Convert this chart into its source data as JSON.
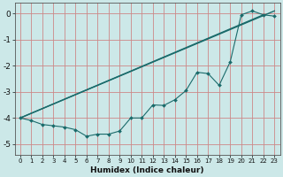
{
  "title": "",
  "xlabel": "Humidex (Indice chaleur)",
  "bg_color": "#cce8e8",
  "grid_color": "#cc8888",
  "line_color": "#1a6b6b",
  "xlim": [
    -0.5,
    23.5
  ],
  "ylim": [
    -5.4,
    0.4
  ],
  "yticks": [
    0,
    -1,
    -2,
    -3,
    -4,
    -5
  ],
  "xticks": [
    0,
    1,
    2,
    3,
    4,
    5,
    6,
    7,
    8,
    9,
    10,
    11,
    12,
    13,
    14,
    15,
    16,
    17,
    18,
    19,
    20,
    21,
    22,
    23
  ],
  "line1_x": [
    0,
    23
  ],
  "line1_y": [
    -4.0,
    0.1
  ],
  "line2_x": [
    0,
    22
  ],
  "line2_y": [
    -4.0,
    -0.05
  ],
  "jagged_x": [
    0,
    1,
    2,
    3,
    4,
    5,
    6,
    7,
    8,
    9,
    10,
    11,
    12,
    13,
    14,
    15,
    16,
    17,
    18,
    19,
    20,
    21,
    22,
    23
  ],
  "jagged_y": [
    -4.0,
    -4.1,
    -4.25,
    -4.3,
    -4.35,
    -4.45,
    -4.7,
    -4.62,
    -4.62,
    -4.5,
    -4.0,
    -4.0,
    -3.5,
    -3.52,
    -3.3,
    -2.95,
    -2.25,
    -2.3,
    -2.75,
    -1.85,
    -0.05,
    0.1,
    -0.05,
    -0.1
  ]
}
